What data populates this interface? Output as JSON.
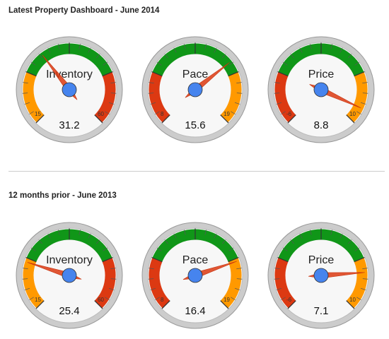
{
  "dashboards": [
    {
      "title": "Latest Property Dashboard - June 2014",
      "gauges": [
        {
          "label": "Inventory",
          "value": 31.2,
          "display": "31.2",
          "min_label": "15",
          "max_label": "60",
          "min": 15,
          "max": 60,
          "left_color": "#ff9900",
          "right_color": "#dc3912"
        },
        {
          "label": "Pace",
          "value": 15.6,
          "display": "15.6",
          "min_label": "8",
          "max_label": "19",
          "min": 8,
          "max": 19,
          "left_color": "#dc3912",
          "right_color": "#ff9900"
        },
        {
          "label": "Price",
          "value": 8.8,
          "display": "8.8",
          "min_label": "-6",
          "max_label": "10",
          "min": -6,
          "max": 10,
          "left_color": "#dc3912",
          "right_color": "#ff9900"
        }
      ]
    },
    {
      "title": "12 months prior - June 2013",
      "gauges": [
        {
          "label": "Inventory",
          "value": 25.4,
          "display": "25.4",
          "min_label": "15",
          "max_label": "60",
          "min": 15,
          "max": 60,
          "left_color": "#ff9900",
          "right_color": "#dc3912"
        },
        {
          "label": "Pace",
          "value": 16.4,
          "display": "16.4",
          "min_label": "8",
          "max_label": "19",
          "min": 8,
          "max": 19,
          "left_color": "#dc3912",
          "right_color": "#ff9900"
        },
        {
          "label": "Price",
          "value": 7.1,
          "display": "7.1",
          "min_label": "-6",
          "max_label": "10",
          "min": -6,
          "max": 10,
          "left_color": "#dc3912",
          "right_color": "#ff9900"
        }
      ]
    }
  ],
  "colors": {
    "green_band": "#109618",
    "needle": "#dc3912",
    "hub": "#4684ee",
    "face": "#f7f7f7",
    "rim": "#cccccc"
  }
}
